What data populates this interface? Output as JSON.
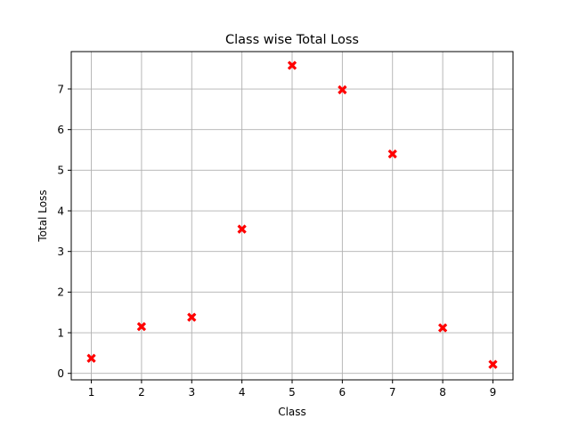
{
  "chart_data": {
    "type": "scatter",
    "title": "Class wise Total Loss",
    "xlabel": "Class",
    "ylabel": "Total Loss",
    "x": [
      1,
      2,
      3,
      4,
      5,
      6,
      7,
      8,
      9
    ],
    "y": [
      0.37,
      1.15,
      1.38,
      3.55,
      7.58,
      6.98,
      5.4,
      1.12,
      0.22
    ],
    "xlim": [
      0.6,
      9.4
    ],
    "ylim": [
      -0.16,
      7.92
    ],
    "xticks": [
      1,
      2,
      3,
      4,
      5,
      6,
      7,
      8,
      9
    ],
    "yticks": [
      0,
      1,
      2,
      3,
      4,
      5,
      6,
      7
    ],
    "grid": true,
    "marker": "X",
    "marker_color": "#ff0000"
  }
}
